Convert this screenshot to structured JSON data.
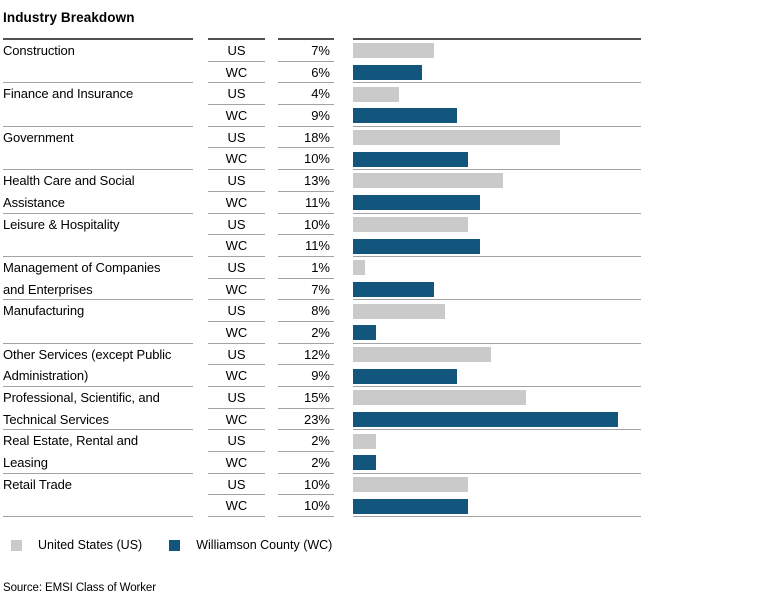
{
  "title": "Industry Breakdown",
  "table": {
    "row_label_us": "US",
    "row_label_wc": "WC",
    "rows": [
      {
        "industry": "Construction",
        "us_text": "7%",
        "wc_text": "6%",
        "us": 7,
        "wc": 6
      },
      {
        "industry": "Finance and Insurance",
        "us_text": "4%",
        "wc_text": "9%",
        "us": 4,
        "wc": 9
      },
      {
        "industry": "Government",
        "us_text": "18%",
        "wc_text": "10%",
        "us": 18,
        "wc": 10
      },
      {
        "industry": "Health Care and Social\nAssistance",
        "us_text": "13%",
        "wc_text": "11%",
        "us": 13,
        "wc": 11
      },
      {
        "industry": "Leisure & Hospitality",
        "us_text": "10%",
        "wc_text": "11%",
        "us": 10,
        "wc": 11
      },
      {
        "industry": "Management of Companies\nand Enterprises",
        "us_text": "1%",
        "wc_text": "7%",
        "us": 1,
        "wc": 7
      },
      {
        "industry": "Manufacturing",
        "us_text": "8%",
        "wc_text": "2%",
        "us": 8,
        "wc": 2
      },
      {
        "industry": "Other Services (except Public\nAdministration)",
        "us_text": "12%",
        "wc_text": "9%",
        "us": 12,
        "wc": 9
      },
      {
        "industry": "Professional, Scientific, and\nTechnical Services",
        "us_text": "15%",
        "wc_text": "23%",
        "us": 15,
        "wc": 23
      },
      {
        "industry": "Real Estate, Rental and\nLeasing",
        "us_text": "2%",
        "wc_text": "2%",
        "us": 2,
        "wc": 2
      },
      {
        "industry": "Retail Trade",
        "us_text": "10%",
        "wc_text": "10%",
        "us": 10,
        "wc": 10
      }
    ]
  },
  "chart_data": {
    "type": "bar",
    "orientation": "horizontal",
    "title": "Industry Breakdown",
    "unit": "percent",
    "xlim": [
      0,
      25
    ],
    "grid": false,
    "value_labels_shown": true,
    "legend_position": "bottom",
    "categories": [
      "Construction",
      "Finance and Insurance",
      "Government",
      "Health Care and Social Assistance",
      "Leisure & Hospitality",
      "Management of Companies and Enterprises",
      "Manufacturing",
      "Other Services (except Public Administration)",
      "Professional, Scientific, and Technical Services",
      "Real Estate, Rental and Leasing",
      "Retail Trade"
    ],
    "series": [
      {
        "name": "United States (US)",
        "values": [
          7,
          4,
          18,
          13,
          10,
          1,
          8,
          12,
          15,
          2,
          10
        ]
      },
      {
        "name": "Williamson County (WC)",
        "values": [
          6,
          9,
          10,
          11,
          11,
          7,
          2,
          9,
          23,
          2,
          10
        ]
      }
    ]
  },
  "legend": {
    "items": [
      {
        "label": "United States (US)",
        "color": "#cacaca"
      },
      {
        "label": "Williamson County (WC)",
        "color": "#13567d"
      }
    ]
  },
  "source": "Source: EMSI Class of Worker",
  "colors": {
    "us_bar": "#cacaca",
    "wc_bar": "#13567d",
    "rule_dark": "#515151",
    "rule_light": "#a3a3a3"
  }
}
